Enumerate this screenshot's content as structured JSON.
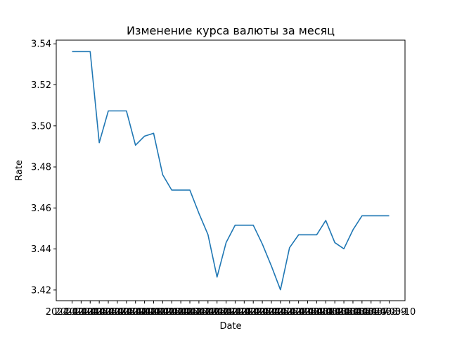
{
  "chart_data": {
    "type": "line",
    "title": "Изменение курса валюты за месяц",
    "xlabel": "Date",
    "ylabel": "Rate",
    "ylim": [
      3.4148,
      3.5418
    ],
    "yticks": [
      "3.42",
      "3.44",
      "3.46",
      "3.48",
      "3.50",
      "3.52",
      "3.54"
    ],
    "x": [
      "2024-02-04",
      "2024-02-05",
      "2024-02-06",
      "2024-02-07",
      "2024-02-08",
      "2024-02-09",
      "2024-02-10",
      "2024-02-11",
      "2024-02-12",
      "2024-02-13",
      "2024-02-14",
      "2024-02-15",
      "2024-02-16",
      "2024-02-17",
      "2024-02-18",
      "2024-02-19",
      "2024-02-20",
      "2024-02-21",
      "2024-02-22",
      "2024-02-23",
      "2024-02-24",
      "2024-02-25",
      "2024-02-26",
      "2024-02-27",
      "2024-02-28",
      "2024-02-29",
      "2024-03-01",
      "2024-03-02",
      "2024-03-03",
      "2024-03-04",
      "2024-03-05",
      "2024-03-06",
      "2024-03-07",
      "2024-03-08",
      "2024-03-09",
      "2024-03-10"
    ],
    "series": [
      {
        "name": "",
        "values": [
          3.5362,
          3.5362,
          3.5362,
          3.4918,
          3.5073,
          3.5073,
          3.5073,
          3.4906,
          3.495,
          3.4964,
          3.4762,
          3.4687,
          3.4687,
          3.4687,
          3.4574,
          3.447,
          3.4263,
          3.4431,
          3.4516,
          3.4516,
          3.4516,
          3.4424,
          3.4317,
          3.4201,
          3.4406,
          3.4469,
          3.4469,
          3.4469,
          3.4539,
          3.4431,
          3.4401,
          3.4493,
          3.4562,
          3.4562,
          3.4562,
          3.4562
        ]
      }
    ],
    "line_color": "#1f77b4",
    "grid": false,
    "legend": "none"
  }
}
